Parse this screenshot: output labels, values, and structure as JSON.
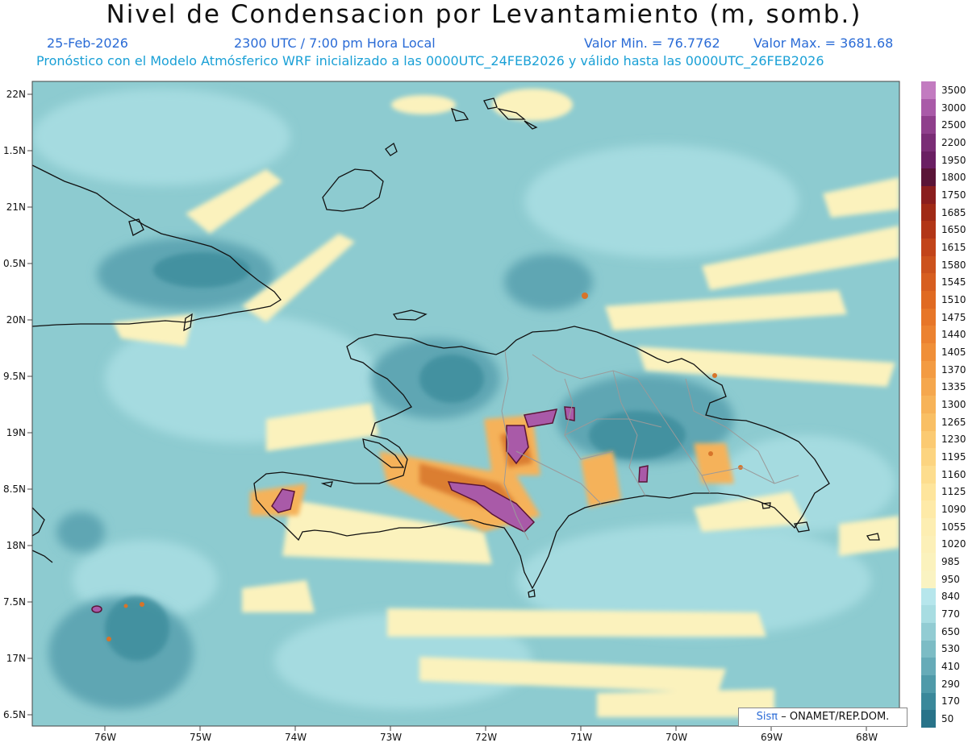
{
  "header": {
    "title": "Nivel de Condensacion por Levantamiento (m, somb.)",
    "date": "25-Feb-2026",
    "time": "2300 UTC / 7:00 pm Hora Local",
    "valmin": "Valor Min. = 76.7762",
    "valmax": "Valor Max. = 3681.68",
    "info": "Pronóstico con el Modelo Atmósferico WRF inicializado a las 0000UTC_24FEB2026 y válido hasta las  0000UTC_26FEB2026"
  },
  "axes": {
    "lat_labels": [
      "22N",
      "1.5N",
      "21N",
      "0.5N",
      "20N",
      "9.5N",
      "19N",
      "8.5N",
      "18N",
      "7.5N",
      "17N",
      "6.5N"
    ],
    "lon_labels": [
      "76W",
      "75W",
      "74W",
      "73W",
      "72W",
      "71W",
      "70W",
      "69W",
      "68W"
    ]
  },
  "colorbar": {
    "labels": [
      "3500",
      "3000",
      "2500",
      "2200",
      "1950",
      "1800",
      "1750",
      "1685",
      "1650",
      "1615",
      "1580",
      "1545",
      "1510",
      "1475",
      "1440",
      "1405",
      "1370",
      "1335",
      "1300",
      "1265",
      "1230",
      "1195",
      "1160",
      "1125",
      "1090",
      "1055",
      "1020",
      "985",
      "950",
      "840",
      "770",
      "650",
      "530",
      "410",
      "290",
      "170",
      "50"
    ],
    "colors": [
      "#c27bc0",
      "#a95aa8",
      "#8f3f8c",
      "#7a2d76",
      "#6a1f63",
      "#5a1437",
      "#8a1e1e",
      "#a02a16",
      "#b23617",
      "#c2441a",
      "#cc521d",
      "#d75e20",
      "#e06a22",
      "#e77628",
      "#ec8230",
      "#f08f38",
      "#f39b42",
      "#f5a74d",
      "#f7b358",
      "#f9bf64",
      "#fbca72",
      "#fcd480",
      "#fddd8e",
      "#fee59c",
      "#feeaa8",
      "#fdeeb2",
      "#fcf0b8",
      "#fbf2bd",
      "#faf3c2",
      "#b6e6ec",
      "#a8dde2",
      "#92ccd3",
      "#7cbcc5",
      "#66abb8",
      "#4f9aa9",
      "#3a889a",
      "#287389"
    ]
  },
  "credit": {
    "logo": "Sisπ",
    "text": " ONAMET/REP.DOM."
  }
}
